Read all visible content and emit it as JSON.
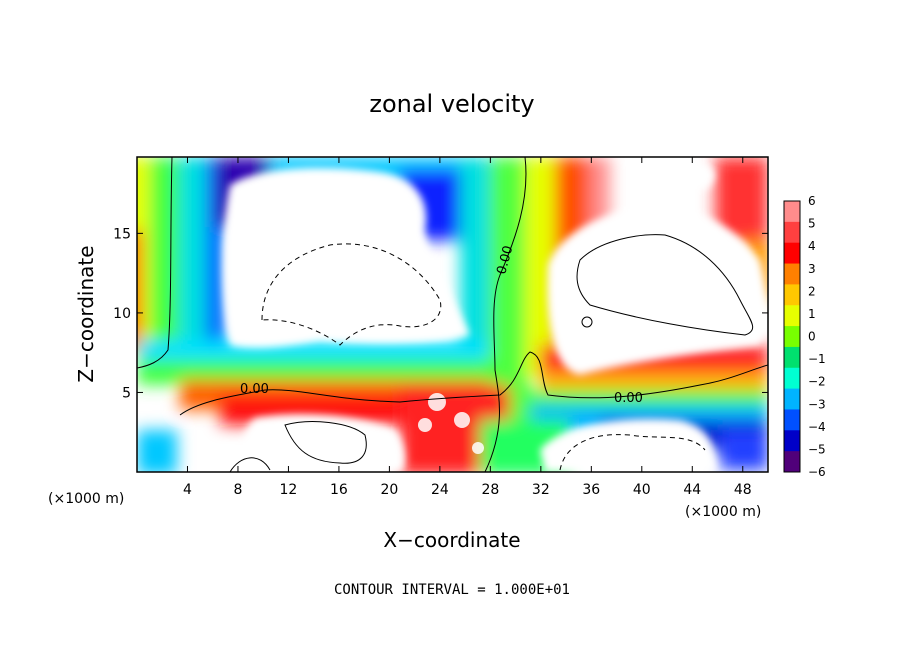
{
  "chart_data": {
    "type": "heatmap",
    "title": "zonal velocity",
    "xlabel": "X−coordinate",
    "ylabel": "Z−coordinate",
    "x_unit": "(×1000 m)",
    "y_unit": "(×1000 m)",
    "xlim": [
      0,
      50
    ],
    "ylim": [
      0,
      19.8
    ],
    "x_ticks": [
      4,
      8,
      12,
      16,
      20,
      24,
      28,
      32,
      36,
      40,
      44,
      48
    ],
    "y_ticks": [
      5,
      10,
      15
    ],
    "x_tick_labels": [
      "4",
      "8",
      "12",
      "16",
      "20",
      "24",
      "28",
      "32",
      "36",
      "40",
      "44",
      "48"
    ],
    "y_tick_labels": [
      "5",
      "10",
      "15"
    ],
    "colorbar": {
      "levels": [
        6,
        5,
        4,
        3,
        2,
        1,
        0,
        -1,
        -2,
        -3,
        -4,
        -5,
        -6
      ],
      "labels": [
        "6",
        "5",
        "4",
        "3",
        "2",
        "1",
        "0",
        "−1",
        "−2",
        "−3",
        "−4",
        "−5",
        "−6"
      ],
      "colors": [
        "#ff8c8c",
        "#ff4040",
        "#ff0000",
        "#ff8000",
        "#ffc800",
        "#e6ff00",
        "#78ff00",
        "#00e06e",
        "#00ffd2",
        "#00b4ff",
        "#0050ff",
        "#0000c8",
        "#50007a"
      ]
    },
    "contour_labels": [
      "0.00",
      "0.00",
      "0.00"
    ],
    "contour_interval_text": "CONTOUR INTERVAL = 1.000E+01"
  }
}
